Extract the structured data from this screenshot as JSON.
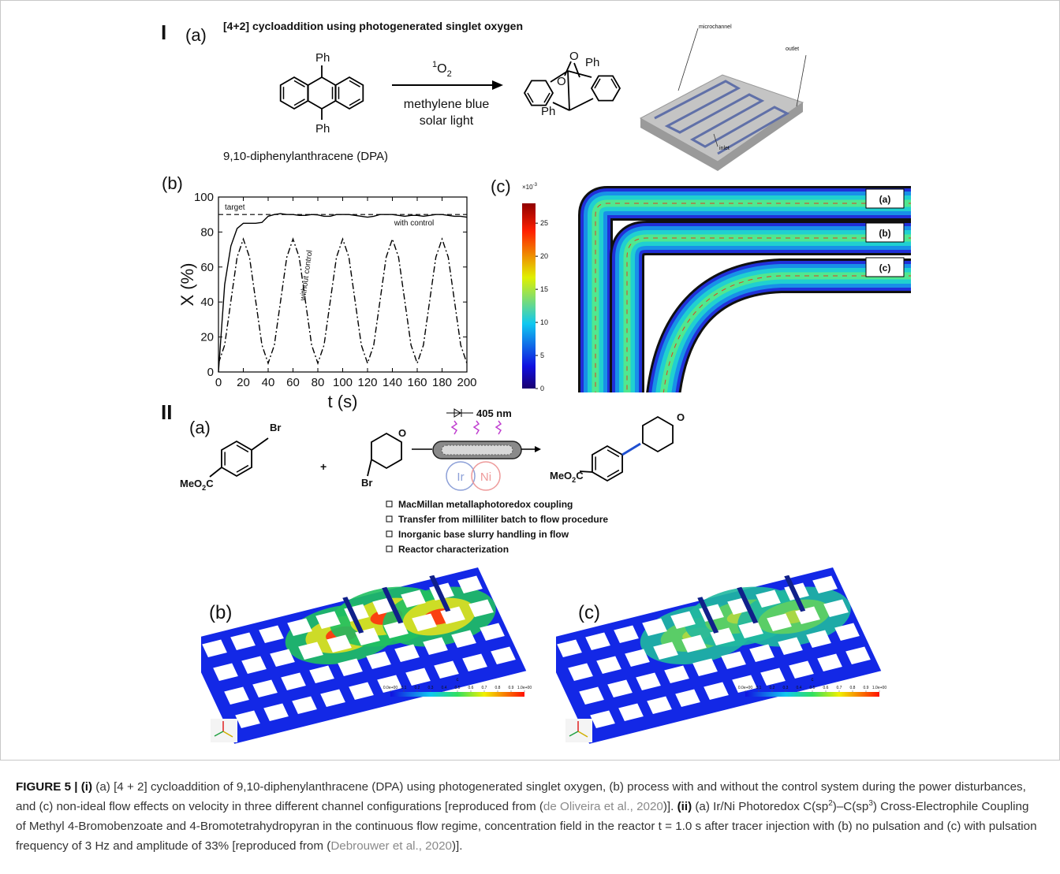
{
  "panel_I": {
    "label": "I",
    "a": {
      "label": "(a)",
      "title": "[4+2] cycloaddition using photogenerated singlet oxygen",
      "dpa_ph_top": "Ph",
      "dpa_ph_bottom": "Ph",
      "reagent": {
        "sup": "1",
        "main": "O",
        "sub": "2"
      },
      "conditions": [
        "methylene blue",
        "solar light"
      ],
      "product_labels": [
        "O",
        "O",
        "Ph",
        "Ph"
      ],
      "reactor_labels": [
        "microchannel",
        "outlet",
        "inlet"
      ],
      "dpa_name": "9,10-diphenylanthracene (DPA)"
    },
    "b_label": "(b)",
    "c": {
      "label": "(c)",
      "colorbar": {
        "multiplier": {
          "base": "×10",
          "exponent": "-3"
        },
        "lim": [
          0,
          28
        ],
        "ticks": [
          0,
          5,
          10,
          15,
          20,
          25
        ]
      },
      "insets": [
        "(a)",
        "(b)",
        "(c)"
      ]
    }
  },
  "chart_data": {
    "type": "line",
    "xlabel": "t (s)",
    "ylabel": "X (%)",
    "x": [
      0,
      5,
      10,
      15,
      20,
      25,
      30,
      35,
      40,
      45,
      50,
      55,
      60,
      65,
      70,
      75,
      80,
      85,
      90,
      95,
      100,
      105,
      110,
      115,
      120,
      125,
      130,
      135,
      140,
      145,
      150,
      155,
      160,
      165,
      170,
      175,
      180,
      185,
      190,
      195,
      200
    ],
    "xlim": [
      0,
      200
    ],
    "ylim": [
      0,
      100
    ],
    "xticks": [
      0,
      20,
      40,
      60,
      80,
      100,
      120,
      140,
      160,
      180,
      200
    ],
    "yticks": [
      0,
      20,
      40,
      60,
      80,
      100
    ],
    "reference_line": {
      "label": "target",
      "value": 90
    },
    "series": [
      {
        "name": "with control",
        "color": "#000000",
        "dash": "solid",
        "values": [
          0,
          50,
          72,
          82,
          85,
          85,
          85,
          85.5,
          89,
          90,
          90.5,
          90,
          90,
          89.5,
          89.5,
          90,
          89.8,
          89,
          89,
          90,
          90,
          90,
          89.5,
          89,
          88.5,
          89,
          90,
          90,
          90,
          89.5,
          89,
          89.5,
          89.5,
          89,
          89.5,
          90,
          90,
          89.5,
          89,
          89,
          88.5
        ]
      },
      {
        "name": "without control",
        "color": "#000000",
        "dash": "dashdot",
        "values": [
          5,
          15.4,
          40.5,
          65.6,
          76,
          65.6,
          40.5,
          15.4,
          5,
          15.4,
          40.5,
          65.6,
          76,
          65.6,
          40.5,
          15.4,
          5,
          15.4,
          40.5,
          65.6,
          76,
          65.6,
          40.5,
          15.4,
          5,
          15.4,
          40.5,
          65.6,
          76,
          65.6,
          40.5,
          15.4,
          5,
          15.4,
          40.5,
          65.6,
          76,
          65.6,
          40.5,
          15.4,
          5
        ]
      }
    ]
  },
  "panel_II": {
    "label": "II",
    "a": {
      "label": "(a)",
      "reactant_1": {
        "br": "Br",
        "ester": {
          "main": "MeO",
          "sub": "2",
          "tail": "C"
        }
      },
      "plus": "+",
      "reactant_2": {
        "o": "O",
        "br": "Br"
      },
      "light": "405 nm",
      "catalysts": [
        "Ir",
        "Ni"
      ],
      "product": {
        "o": "O",
        "ester": {
          "main": "MeO",
          "sub": "2",
          "tail": "C"
        }
      },
      "bullets": [
        "MacMillan metallaphotoredox coupling",
        "Transfer from milliliter batch to flow procedure",
        "Inorganic base slurry handling in flow",
        "Reactor characterization"
      ]
    },
    "b_label": "(b)",
    "c_label": "(c)",
    "sim_colorbar": {
      "title": "c",
      "ticks": [
        {
          "value": 0,
          "label": "0.0e+00"
        },
        0.1,
        0.2,
        0.3,
        0.4,
        0.5,
        0.6,
        0.7,
        0.8,
        0.9,
        {
          "value": 1,
          "label": "1.0e+00"
        }
      ]
    }
  },
  "caption": [
    {
      "text": "FIGURE 5 | (i)",
      "style": "bold"
    },
    {
      "text": " (a) [4 + 2] cycloaddition of 9,10-diphenylanthracene (DPA) using photogenerated singlet oxygen, (b) process with and without the control system during the power disturbances, and (c) non-ideal flow effects on velocity in three different channel configurations [reproduced from (",
      "style": "normal"
    },
    {
      "text": "de Oliveira et al., 2020",
      "style": "link"
    },
    {
      "text": ")]. ",
      "style": "normal"
    },
    {
      "text": "(ii)",
      "style": "bold"
    },
    {
      "text": " (a) Ir/Ni Photoredox C(sp",
      "style": "normal"
    },
    {
      "text": "2",
      "style": "sup"
    },
    {
      "text": ")–C(sp",
      "style": "normal"
    },
    {
      "text": "3",
      "style": "sup"
    },
    {
      "text": ") Cross-Electrophile Coupling of Methyl 4-Bromobenzoate and 4-Bromotetrahydropyran in the continuous flow regime, concentration field in the reactor t = 1.0 s after tracer injection with (b) no pulsation and (c) with pulsation frequency of 3 Hz and amplitude of 33% [reproduced from (",
      "style": "normal"
    },
    {
      "text": "Debrouwer et al., 2020",
      "style": "link"
    },
    {
      "text": ")].",
      "style": "normal"
    }
  ]
}
